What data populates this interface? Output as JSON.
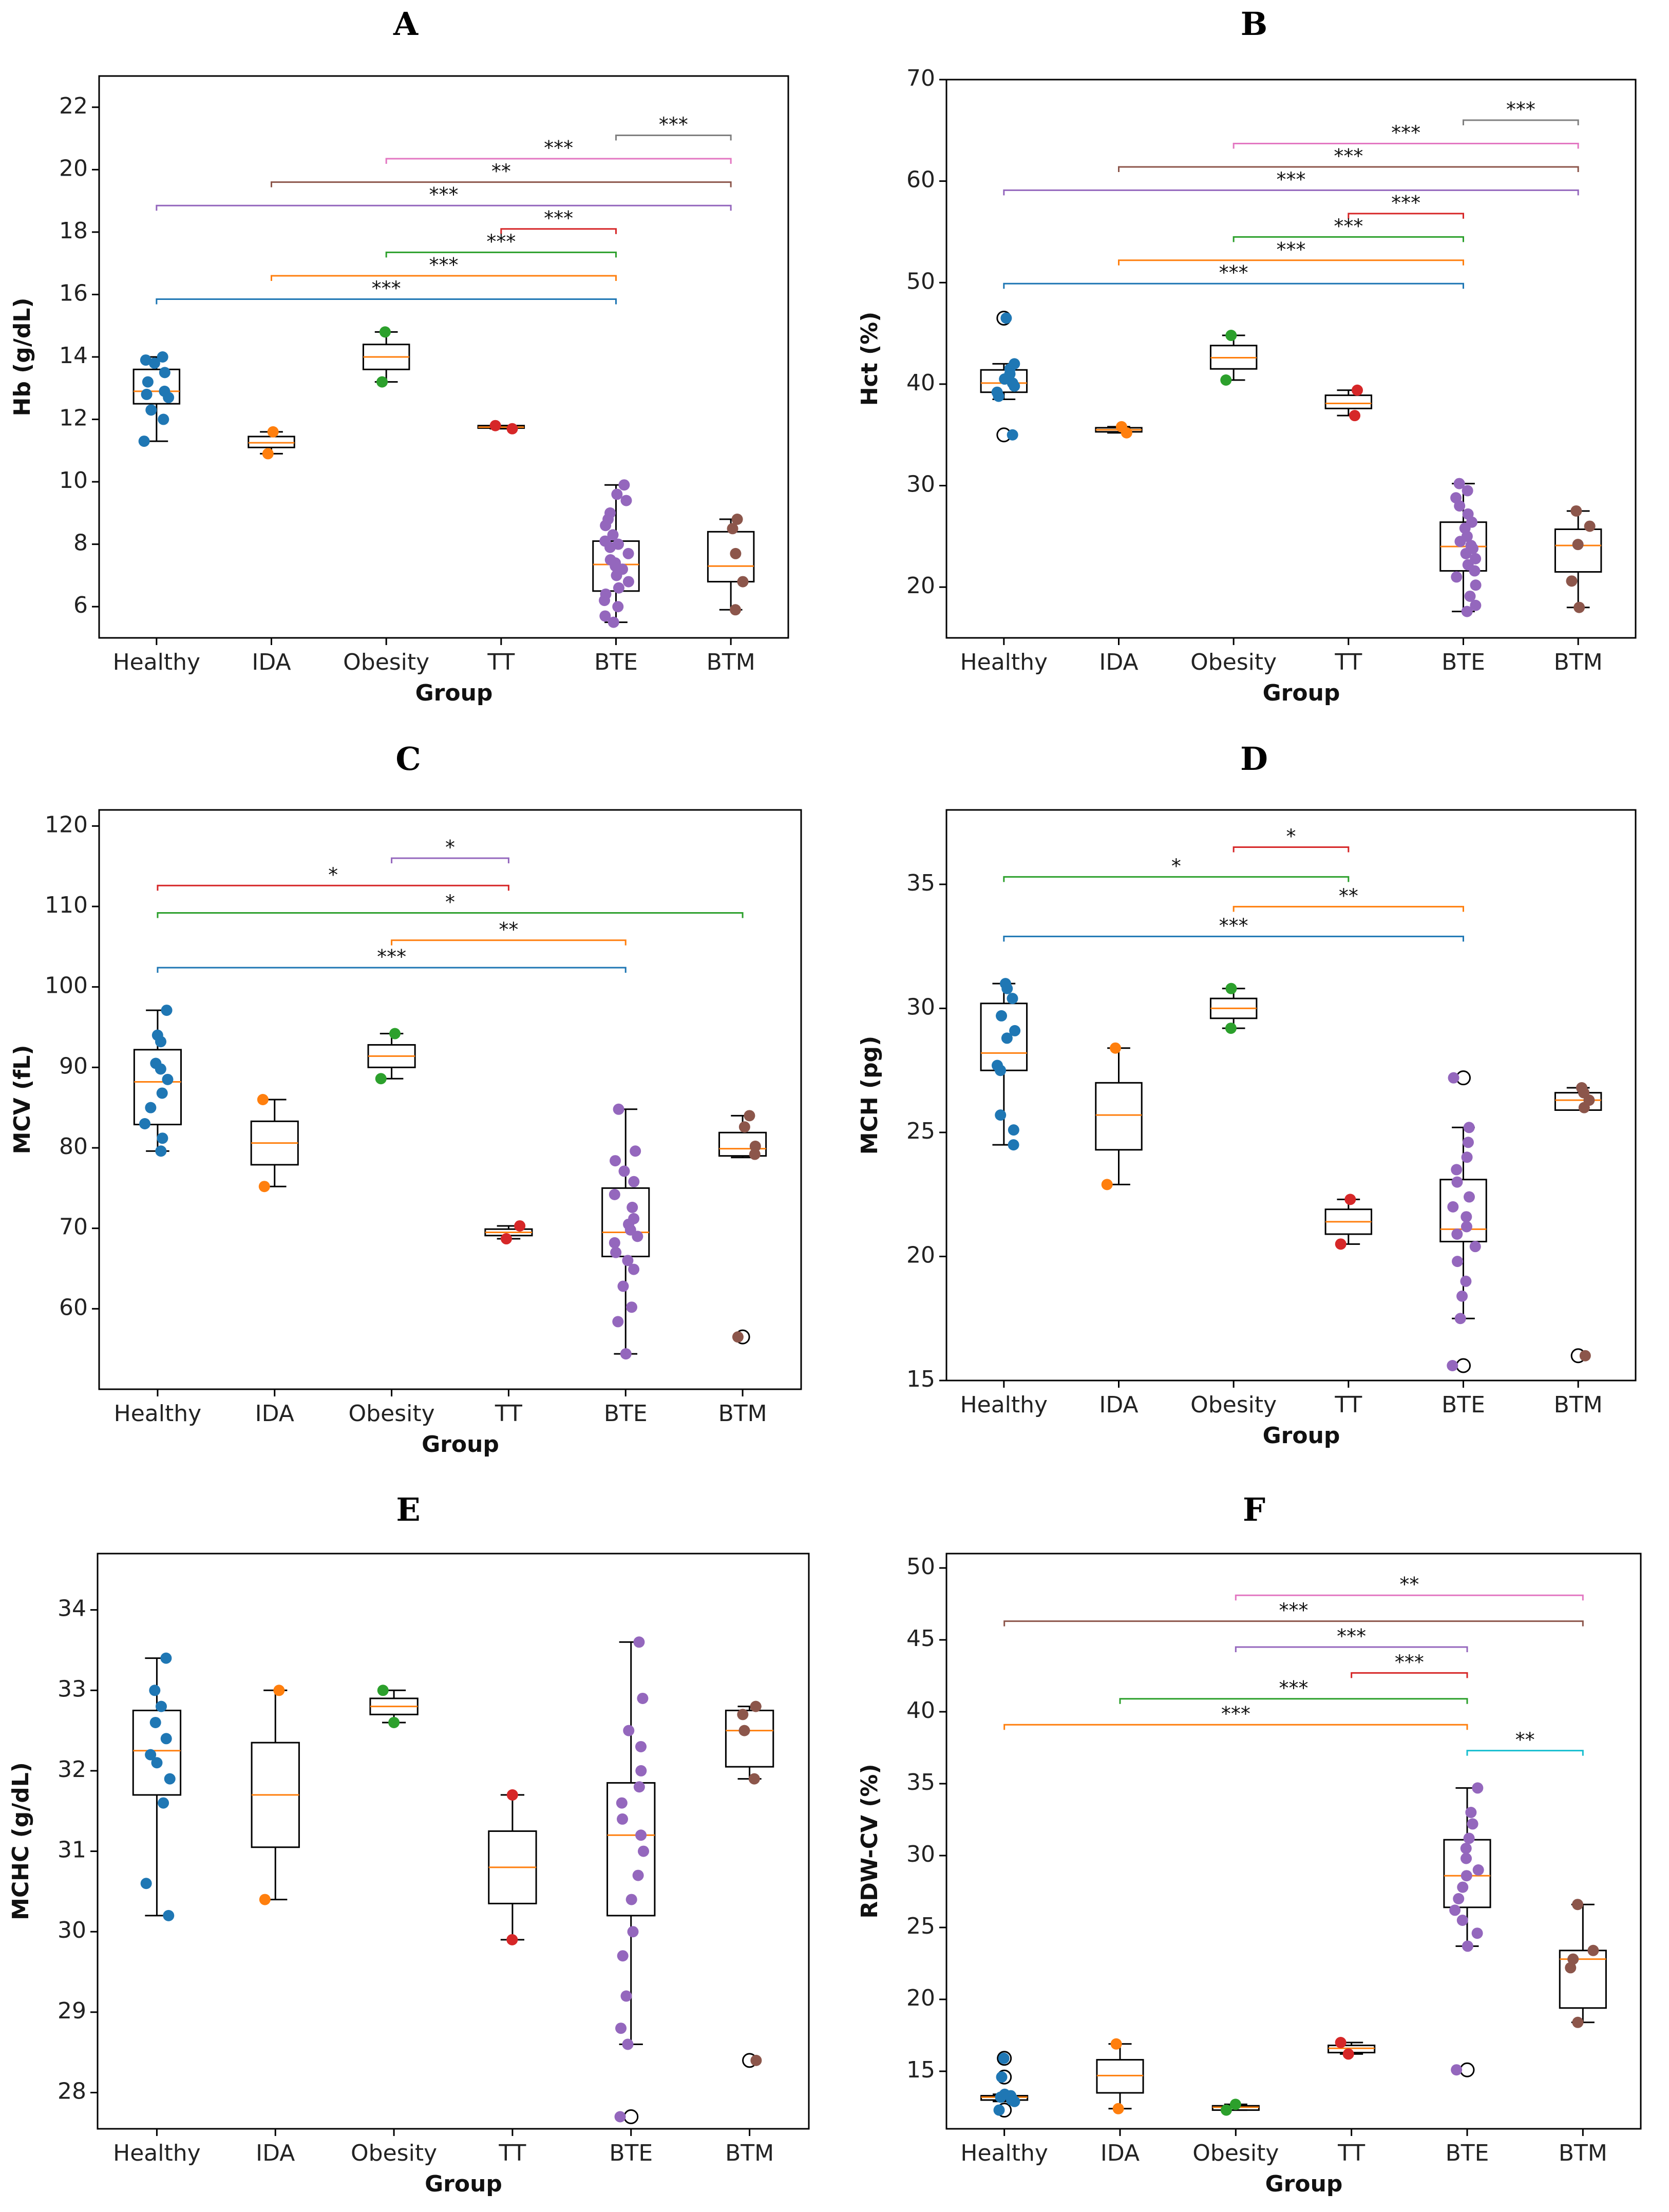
{
  "figure": {
    "groups": [
      "Healthy",
      "IDA",
      "Obesity",
      "TT",
      "BTE",
      "BTM"
    ],
    "group_colors": [
      "#1f77b4",
      "#ff7f0e",
      "#2ca02c",
      "#d62728",
      "#9467bd",
      "#8c564b"
    ],
    "median_color": "#ff7f0e"
  },
  "chart_data": [
    {
      "panel": "A",
      "type": "box",
      "xlabel": "Group",
      "ylabel": "Hb (g/dL)",
      "ylim": [
        5.0,
        23.0
      ],
      "yticks": [
        6,
        8,
        10,
        12,
        14,
        16,
        18,
        20,
        22
      ],
      "boxes": [
        {
          "group": "Healthy",
          "q1": 12.5,
          "median": 12.9,
          "q3": 13.6,
          "whislo": 11.3,
          "whishi": 14.0,
          "fliers": [],
          "points": [
            14.0,
            13.9,
            13.8,
            13.5,
            13.2,
            12.9,
            12.8,
            12.7,
            12.3,
            12.0,
            11.3
          ]
        },
        {
          "group": "IDA",
          "q1": 11.1,
          "median": 11.25,
          "q3": 11.45,
          "whislo": 10.9,
          "whishi": 11.6,
          "fliers": [],
          "points": [
            11.6,
            10.9
          ]
        },
        {
          "group": "Obesity",
          "q1": 13.6,
          "median": 14.0,
          "q3": 14.4,
          "whislo": 13.2,
          "whishi": 14.8,
          "fliers": [],
          "points": [
            14.8,
            13.2
          ]
        },
        {
          "group": "TT",
          "q1": 11.72,
          "median": 11.75,
          "q3": 11.8,
          "whislo": 11.7,
          "whishi": 11.8,
          "fliers": [],
          "points": [
            11.8,
            11.7
          ]
        },
        {
          "group": "BTE",
          "q1": 6.5,
          "median": 7.35,
          "q3": 8.1,
          "whislo": 5.5,
          "whishi": 9.9,
          "fliers": [],
          "points": [
            9.9,
            9.6,
            9.4,
            9.0,
            8.8,
            8.6,
            8.3,
            8.1,
            8.0,
            7.9,
            7.7,
            7.5,
            7.4,
            7.3,
            7.2,
            7.0,
            6.8,
            6.6,
            6.4,
            6.2,
            6.0,
            5.7,
            5.5
          ]
        },
        {
          "group": "BTM",
          "q1": 6.8,
          "median": 7.3,
          "q3": 8.4,
          "whislo": 5.9,
          "whishi": 8.8,
          "fliers": [],
          "points": [
            8.8,
            8.5,
            7.7,
            6.8,
            5.9
          ]
        }
      ],
      "brackets": [
        {
          "from": "BTE",
          "to": "BTM",
          "label": "***",
          "color": "#7f7f7f",
          "y": 21.1
        },
        {
          "from": "Obesity",
          "to": "BTM",
          "label": "***",
          "color": "#e377c2",
          "y": 20.35
        },
        {
          "from": "IDA",
          "to": "BTM",
          "label": "**",
          "color": "#8c564b",
          "y": 19.6
        },
        {
          "from": "Healthy",
          "to": "BTM",
          "label": "***",
          "color": "#9467bd",
          "y": 18.85
        },
        {
          "from": "TT",
          "to": "BTE",
          "label": "***",
          "color": "#d62728",
          "y": 18.1
        },
        {
          "from": "Obesity",
          "to": "BTE",
          "label": "***",
          "color": "#2ca02c",
          "y": 17.35
        },
        {
          "from": "IDA",
          "to": "BTE",
          "label": "***",
          "color": "#ff7f0e",
          "y": 16.6
        },
        {
          "from": "Healthy",
          "to": "BTE",
          "label": "***",
          "color": "#1f77b4",
          "y": 15.85
        }
      ]
    },
    {
      "panel": "B",
      "type": "box",
      "xlabel": "Group",
      "ylabel": "Hct (%)",
      "ylim": [
        15.0,
        70.0
      ],
      "yticks": [
        20,
        30,
        40,
        50,
        60,
        70
      ],
      "boxes": [
        {
          "group": "Healthy",
          "q1": 39.2,
          "median": 40.1,
          "q3": 41.4,
          "whislo": 38.5,
          "whishi": 42.0,
          "fliers": [
            46.5,
            35.0
          ],
          "points": [
            46.5,
            42.0,
            41.5,
            41.0,
            40.5,
            40.1,
            39.8,
            39.2,
            38.8,
            35.0
          ]
        },
        {
          "group": "IDA",
          "q1": 35.3,
          "median": 35.5,
          "q3": 35.7,
          "whislo": 35.2,
          "whishi": 35.8,
          "fliers": [],
          "points": [
            35.8,
            35.2
          ]
        },
        {
          "group": "Obesity",
          "q1": 41.5,
          "median": 42.6,
          "q3": 43.8,
          "whislo": 40.4,
          "whishi": 44.8,
          "fliers": [],
          "points": [
            44.8,
            40.4
          ]
        },
        {
          "group": "TT",
          "q1": 37.6,
          "median": 38.1,
          "q3": 38.9,
          "whislo": 36.9,
          "whishi": 39.4,
          "fliers": [],
          "points": [
            39.4,
            36.9
          ]
        },
        {
          "group": "BTE",
          "q1": 21.6,
          "median": 24.0,
          "q3": 26.4,
          "whislo": 17.6,
          "whishi": 30.2,
          "fliers": [],
          "points": [
            30.2,
            29.5,
            28.8,
            28.0,
            27.2,
            26.4,
            25.8,
            25.0,
            24.5,
            24.1,
            23.8,
            23.3,
            22.8,
            22.2,
            21.6,
            21.0,
            20.2,
            19.1,
            18.2,
            17.6
          ]
        },
        {
          "group": "BTM",
          "q1": 21.5,
          "median": 24.1,
          "q3": 25.7,
          "whislo": 18.0,
          "whishi": 27.5,
          "fliers": [],
          "points": [
            27.5,
            26.0,
            24.2,
            20.6,
            18.0
          ]
        }
      ],
      "brackets": [
        {
          "from": "BTE",
          "to": "BTM",
          "label": "***",
          "color": "#7f7f7f",
          "y": 66.0
        },
        {
          "from": "Obesity",
          "to": "BTM",
          "label": "***",
          "color": "#e377c2",
          "y": 63.7
        },
        {
          "from": "IDA",
          "to": "BTM",
          "label": "***",
          "color": "#8c564b",
          "y": 61.4
        },
        {
          "from": "Healthy",
          "to": "BTM",
          "label": "***",
          "color": "#9467bd",
          "y": 59.1
        },
        {
          "from": "TT",
          "to": "BTE",
          "label": "***",
          "color": "#d62728",
          "y": 56.8
        },
        {
          "from": "Obesity",
          "to": "BTE",
          "label": "***",
          "color": "#2ca02c",
          "y": 54.5
        },
        {
          "from": "IDA",
          "to": "BTE",
          "label": "***",
          "color": "#ff7f0e",
          "y": 52.2
        },
        {
          "from": "Healthy",
          "to": "BTE",
          "label": "***",
          "color": "#1f77b4",
          "y": 49.9
        }
      ]
    },
    {
      "panel": "C",
      "type": "box",
      "xlabel": "Group",
      "ylabel": "MCV (fL)",
      "ylim": [
        50.0,
        122.0
      ],
      "yticks": [
        60,
        70,
        80,
        90,
        100,
        110,
        120
      ],
      "boxes": [
        {
          "group": "Healthy",
          "q1": 82.9,
          "median": 88.2,
          "q3": 92.2,
          "whislo": 79.6,
          "whishi": 97.1,
          "fliers": [],
          "points": [
            97.1,
            94.0,
            93.2,
            90.5,
            89.8,
            88.5,
            86.8,
            85.0,
            83.0,
            81.2,
            79.6
          ]
        },
        {
          "group": "IDA",
          "q1": 77.9,
          "median": 80.6,
          "q3": 83.3,
          "whislo": 75.2,
          "whishi": 86.0,
          "fliers": [],
          "points": [
            86.0,
            75.2
          ]
        },
        {
          "group": "Obesity",
          "q1": 90.0,
          "median": 91.4,
          "q3": 92.8,
          "whislo": 88.6,
          "whishi": 94.2,
          "fliers": [],
          "points": [
            94.2,
            88.6
          ]
        },
        {
          "group": "TT",
          "q1": 69.1,
          "median": 69.5,
          "q3": 69.9,
          "whislo": 68.7,
          "whishi": 70.3,
          "fliers": [],
          "points": [
            70.3,
            68.7
          ]
        },
        {
          "group": "BTE",
          "q1": 66.5,
          "median": 69.5,
          "q3": 75.0,
          "whislo": 54.4,
          "whishi": 84.8,
          "fliers": [],
          "points": [
            84.8,
            79.6,
            78.4,
            77.1,
            75.8,
            74.2,
            72.6,
            71.2,
            70.5,
            69.8,
            69.0,
            68.2,
            67.0,
            66.0,
            64.9,
            62.8,
            60.2,
            58.4,
            54.4
          ]
        },
        {
          "group": "BTM",
          "q1": 79.0,
          "median": 79.9,
          "q3": 81.9,
          "whislo": 78.8,
          "whishi": 84.0,
          "fliers": [
            56.5
          ],
          "points": [
            84.0,
            82.6,
            80.2,
            79.2,
            56.5
          ]
        }
      ],
      "brackets": [
        {
          "from": "Obesity",
          "to": "TT",
          "label": "*",
          "color": "#9467bd",
          "y": 116.0
        },
        {
          "from": "Healthy",
          "to": "TT",
          "label": "*",
          "color": "#d62728",
          "y": 112.6
        },
        {
          "from": "Healthy",
          "to": "BTM",
          "label": "*",
          "color": "#2ca02c",
          "y": 109.2
        },
        {
          "from": "Obesity",
          "to": "BTE",
          "label": "**",
          "color": "#ff7f0e",
          "y": 105.8
        },
        {
          "from": "Healthy",
          "to": "BTE",
          "label": "***",
          "color": "#1f77b4",
          "y": 102.4
        }
      ]
    },
    {
      "panel": "D",
      "type": "box",
      "xlabel": "Group",
      "ylabel": "MCH (pg)",
      "ylim": [
        15.0,
        38.0
      ],
      "yticks": [
        15,
        20,
        25,
        30,
        35
      ],
      "boxes": [
        {
          "group": "Healthy",
          "q1": 27.5,
          "median": 28.2,
          "q3": 30.2,
          "whislo": 24.5,
          "whishi": 31.0,
          "fliers": [],
          "points": [
            31.0,
            30.8,
            30.4,
            29.7,
            29.1,
            28.8,
            27.7,
            27.5,
            25.7,
            25.1,
            24.5
          ]
        },
        {
          "group": "IDA",
          "q1": 24.3,
          "median": 25.7,
          "q3": 27.0,
          "whislo": 22.9,
          "whishi": 28.4,
          "fliers": [],
          "points": [
            28.4,
            22.9
          ]
        },
        {
          "group": "Obesity",
          "q1": 29.6,
          "median": 30.0,
          "q3": 30.4,
          "whislo": 29.2,
          "whishi": 30.8,
          "fliers": [],
          "points": [
            30.8,
            29.2
          ]
        },
        {
          "group": "TT",
          "q1": 20.9,
          "median": 21.4,
          "q3": 21.9,
          "whislo": 20.5,
          "whishi": 22.3,
          "fliers": [],
          "points": [
            22.3,
            20.5
          ]
        },
        {
          "group": "BTE",
          "q1": 20.6,
          "median": 21.1,
          "q3": 23.1,
          "whislo": 17.5,
          "whishi": 25.2,
          "fliers": [
            27.2,
            15.6
          ],
          "points": [
            27.2,
            25.2,
            24.6,
            24.0,
            23.5,
            23.0,
            22.4,
            22.0,
            21.6,
            21.2,
            20.9,
            20.4,
            19.8,
            19.0,
            18.4,
            17.5,
            15.6
          ]
        },
        {
          "group": "BTM",
          "q1": 25.9,
          "median": 26.3,
          "q3": 26.6,
          "whislo": 25.9,
          "whishi": 26.8,
          "fliers": [
            16.0
          ],
          "points": [
            26.8,
            26.6,
            26.3,
            26.0,
            16.0
          ]
        }
      ],
      "brackets": [
        {
          "from": "Obesity",
          "to": "TT",
          "label": "*",
          "color": "#d62728",
          "y": 36.5
        },
        {
          "from": "Healthy",
          "to": "TT",
          "label": "*",
          "color": "#2ca02c",
          "y": 35.3
        },
        {
          "from": "Obesity",
          "to": "BTE",
          "label": "**",
          "color": "#ff7f0e",
          "y": 34.1
        },
        {
          "from": "Healthy",
          "to": "BTE",
          "label": "***",
          "color": "#1f77b4",
          "y": 32.9
        }
      ]
    },
    {
      "panel": "E",
      "type": "box",
      "xlabel": "Group",
      "ylabel": "MCHC (g/dL)",
      "ylim": [
        27.55,
        34.7
      ],
      "yticks": [
        28,
        29,
        30,
        31,
        32,
        33,
        34
      ],
      "boxes": [
        {
          "group": "Healthy",
          "q1": 31.7,
          "median": 32.25,
          "q3": 32.75,
          "whislo": 30.2,
          "whishi": 33.4,
          "fliers": [],
          "points": [
            33.4,
            33.0,
            32.8,
            32.6,
            32.4,
            32.2,
            32.1,
            31.9,
            31.6,
            30.6,
            30.2
          ]
        },
        {
          "group": "IDA",
          "q1": 31.05,
          "median": 31.7,
          "q3": 32.35,
          "whislo": 30.4,
          "whishi": 33.0,
          "fliers": [],
          "points": [
            33.0,
            30.4
          ]
        },
        {
          "group": "Obesity",
          "q1": 32.7,
          "median": 32.8,
          "q3": 32.9,
          "whislo": 32.6,
          "whishi": 33.0,
          "fliers": [],
          "points": [
            33.0,
            32.6
          ]
        },
        {
          "group": "TT",
          "q1": 30.35,
          "median": 30.8,
          "q3": 31.25,
          "whislo": 29.9,
          "whishi": 31.7,
          "fliers": [],
          "points": [
            31.7,
            29.9
          ]
        },
        {
          "group": "BTE",
          "q1": 30.2,
          "median": 31.2,
          "q3": 31.85,
          "whislo": 28.6,
          "whishi": 33.6,
          "fliers": [
            27.7
          ],
          "points": [
            33.6,
            32.9,
            32.5,
            32.3,
            32.0,
            31.8,
            31.6,
            31.4,
            31.2,
            31.0,
            30.7,
            30.4,
            30.0,
            29.7,
            29.2,
            28.8,
            28.6,
            27.7
          ]
        },
        {
          "group": "BTM",
          "q1": 32.05,
          "median": 32.5,
          "q3": 32.75,
          "whislo": 31.9,
          "whishi": 32.8,
          "fliers": [
            28.4
          ],
          "points": [
            32.8,
            32.7,
            32.5,
            31.9,
            28.4
          ]
        }
      ],
      "brackets": []
    },
    {
      "panel": "F",
      "type": "box",
      "xlabel": "Group",
      "ylabel": "RDW-CV (%)",
      "ylim": [
        11.0,
        51.0
      ],
      "yticks": [
        15,
        20,
        25,
        30,
        35,
        40,
        45,
        50
      ],
      "boxes": [
        {
          "group": "Healthy",
          "q1": 13.0,
          "median": 13.2,
          "q3": 13.3,
          "whislo": 12.9,
          "whishi": 13.4,
          "fliers": [
            15.9,
            14.6,
            12.3
          ],
          "points": [
            15.9,
            14.6,
            13.4,
            13.3,
            13.2,
            13.1,
            13.0,
            12.9,
            12.3
          ]
        },
        {
          "group": "IDA",
          "q1": 13.5,
          "median": 14.7,
          "q3": 15.8,
          "whislo": 12.4,
          "whishi": 16.9,
          "fliers": [],
          "points": [
            16.9,
            12.4
          ]
        },
        {
          "group": "Obesity",
          "q1": 12.3,
          "median": 12.5,
          "q3": 12.6,
          "whislo": 12.3,
          "whishi": 12.7,
          "fliers": [],
          "points": [
            12.7,
            12.3
          ]
        },
        {
          "group": "TT",
          "q1": 16.3,
          "median": 16.6,
          "q3": 16.8,
          "whislo": 16.2,
          "whishi": 17.0,
          "fliers": [],
          "points": [
            17.0,
            16.2
          ]
        },
        {
          "group": "BTE",
          "q1": 26.4,
          "median": 28.6,
          "q3": 31.1,
          "whislo": 23.7,
          "whishi": 34.7,
          "fliers": [
            15.1
          ],
          "points": [
            34.7,
            33.0,
            32.2,
            31.2,
            30.5,
            29.8,
            29.0,
            28.6,
            27.8,
            27.0,
            26.2,
            25.5,
            24.6,
            23.7,
            15.1
          ]
        },
        {
          "group": "BTM",
          "q1": 19.4,
          "median": 22.8,
          "q3": 23.4,
          "whislo": 18.4,
          "whishi": 26.6,
          "fliers": [],
          "points": [
            26.6,
            23.4,
            22.8,
            22.2,
            18.4
          ]
        }
      ],
      "brackets": [
        {
          "from": "Obesity",
          "to": "BTM",
          "label": "**",
          "color": "#e377c2",
          "y": 48.1
        },
        {
          "from": "Healthy",
          "to": "BTM",
          "label": "***",
          "color": "#8c564b",
          "y": 46.3
        },
        {
          "from": "Obesity",
          "to": "BTE",
          "label": "***",
          "color": "#9467bd",
          "y": 44.5
        },
        {
          "from": "TT",
          "to": "BTE",
          "label": "***",
          "color": "#d62728",
          "y": 42.7
        },
        {
          "from": "IDA",
          "to": "BTE",
          "label": "***",
          "color": "#2ca02c",
          "y": 40.9
        },
        {
          "from": "Healthy",
          "to": "BTE",
          "label": "***",
          "color": "#ff7f0e",
          "y": 39.1
        },
        {
          "from": "BTE",
          "to": "BTM",
          "label": "**",
          "color": "#17becf",
          "y": 37.3
        }
      ]
    }
  ]
}
